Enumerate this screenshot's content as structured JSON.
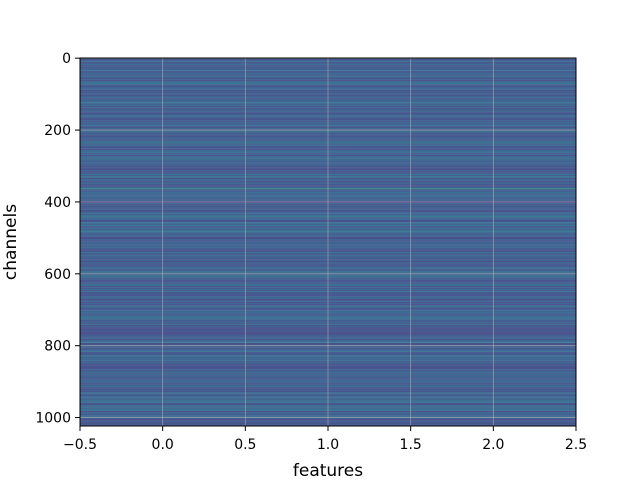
{
  "chart_data": {
    "type": "heatmap",
    "title": "",
    "xlabel": "features",
    "ylabel": "channels",
    "colormap": "viridis",
    "n_rows": 1024,
    "n_cols": 3,
    "xlim": [
      -0.5,
      2.5
    ],
    "ylim": [
      1023.5,
      -0.5
    ],
    "y_inverted": true,
    "grid": true,
    "grid_color": "#b0b0b0",
    "x_ticks": [
      -0.5,
      0.0,
      0.5,
      1.0,
      1.5,
      2.0,
      2.5
    ],
    "x_tick_labels": [
      "−0.5",
      "0.0",
      "0.5",
      "1.0",
      "1.5",
      "2.0",
      "2.5"
    ],
    "y_ticks": [
      0,
      200,
      400,
      600,
      800,
      1000
    ],
    "y_tick_labels": [
      "0",
      "200",
      "400",
      "600",
      "800",
      "1000"
    ],
    "highlight_rows": [
      {
        "row": 235,
        "value": 0.6
      },
      {
        "row": 362,
        "value": 0.75
      },
      {
        "row": 712,
        "value": 0.55
      },
      {
        "row": 792,
        "value": 0.65
      }
    ]
  }
}
